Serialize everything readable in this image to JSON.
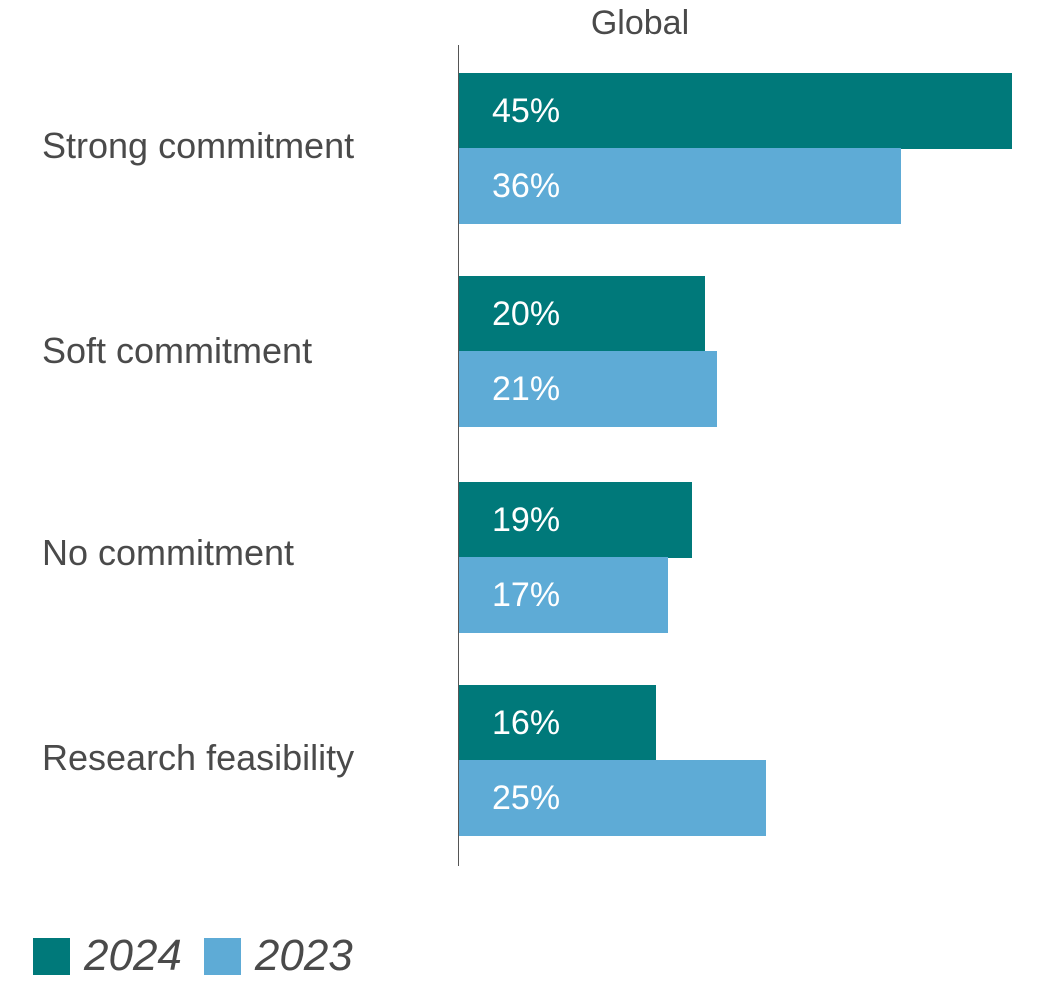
{
  "chart_data": {
    "type": "bar",
    "orientation": "horizontal",
    "title": "Global",
    "xlabel": "",
    "ylabel": "",
    "xlim": [
      0,
      45
    ],
    "grid": false,
    "legend_position": "bottom-left",
    "categories": [
      "Strong commitment",
      "Soft commitment",
      "No commitment",
      "Research feasibility"
    ],
    "series": [
      {
        "name": "2024",
        "color": "#00797A",
        "values": [
          45,
          20,
          19,
          16
        ],
        "labels": [
          "45%",
          "20%",
          "19%",
          "16%"
        ]
      },
      {
        "name": "2023",
        "color": "#5EABD6",
        "values": [
          36,
          21,
          17,
          25
        ],
        "labels": [
          "36%",
          "21%",
          "17%",
          "25%"
        ]
      }
    ],
    "unit": "%"
  }
}
